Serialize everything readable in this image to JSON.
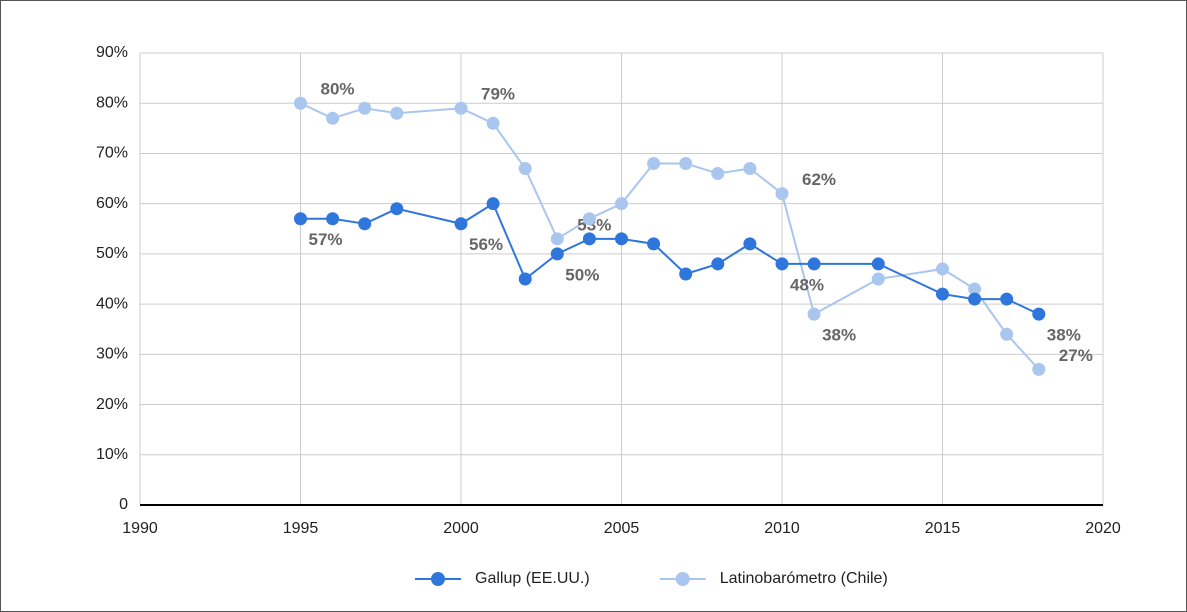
{
  "chart_data": {
    "type": "line",
    "xlim": [
      1990,
      2020
    ],
    "xticks": [
      1990,
      1995,
      2000,
      2005,
      2010,
      2015,
      2020
    ],
    "ylim": [
      0,
      90
    ],
    "yticks": [
      0,
      {
        "value": 10,
        "label": "10%"
      },
      {
        "value": 20,
        "label": "20%"
      },
      {
        "value": 30,
        "label": "30%"
      },
      {
        "value": 40,
        "label": "40%"
      },
      {
        "value": 50,
        "label": "50%"
      },
      {
        "value": 60,
        "label": "60%"
      },
      {
        "value": 70,
        "label": "70%"
      },
      {
        "value": 80,
        "label": "80%"
      },
      {
        "value": 90,
        "label": "90%"
      }
    ],
    "grid": true,
    "legend": "bottom",
    "series": [
      {
        "name": "Gallup (EE.UU.)",
        "color": "#2f76dc",
        "x": [
          1995,
          1996,
          1997,
          1998,
          2000,
          2001,
          2002,
          2003,
          2004,
          2005,
          2006,
          2007,
          2008,
          2009,
          2010,
          2011,
          2013,
          2015,
          2016,
          2017,
          2018
        ],
        "values": [
          57,
          57,
          56,
          59,
          56,
          60,
          45,
          50,
          53,
          53,
          52,
          46,
          48,
          52,
          48,
          48,
          48,
          42,
          41,
          41,
          38
        ],
        "value_labels": [
          "57%",
          null,
          null,
          null,
          "56%",
          null,
          null,
          "50%",
          null,
          null,
          null,
          null,
          null,
          null,
          "48%",
          null,
          null,
          null,
          null,
          null,
          "38%"
        ]
      },
      {
        "name": "Latinobarómetro (Chile)",
        "color": "#a9c6ef",
        "x": [
          1995,
          1996,
          1997,
          1998,
          2000,
          2001,
          2002,
          2003,
          2004,
          2005,
          2006,
          2007,
          2008,
          2009,
          2010,
          2011,
          2013,
          2015,
          2016,
          2017,
          2018
        ],
        "values": [
          80,
          77,
          79,
          78,
          79,
          76,
          67,
          53,
          57,
          60,
          68,
          68,
          66,
          67,
          62,
          38,
          45,
          47,
          43,
          34,
          27
        ],
        "value_labels": [
          "80%",
          null,
          null,
          null,
          "79%",
          null,
          null,
          "53%",
          null,
          null,
          null,
          null,
          null,
          null,
          "62%",
          "38%",
          null,
          null,
          null,
          null,
          "27%"
        ]
      }
    ]
  }
}
